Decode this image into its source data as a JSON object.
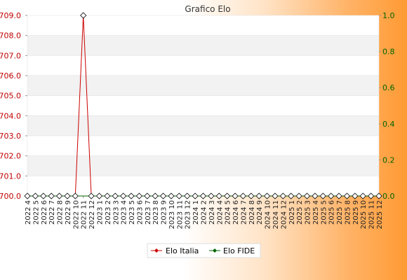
{
  "chart_data": {
    "type": "line",
    "title": "Grafico Elo",
    "categories": [
      "2022 4",
      "2022 5",
      "2022 6",
      "2022 7",
      "2022 8",
      "2022 9",
      "2022 10",
      "2022 11",
      "2022 12",
      "2023 1",
      "2023 2",
      "2023 3",
      "2023 4",
      "2023 5",
      "2023 6",
      "2023 7",
      "2023 8",
      "2023 9",
      "2023 10",
      "2023 11",
      "2023 12",
      "2024 1",
      "2024 2",
      "2024 3",
      "2024 4",
      "2024 5",
      "2024 6",
      "2024 7",
      "2024 8",
      "2024 9",
      "2024 10",
      "2024 11",
      "2024 12",
      "2025 1",
      "2025 2",
      "2025 3",
      "2025 4",
      "2025 5",
      "2025 6",
      "2025 7",
      "2025 8",
      "2025 9",
      "2025 10",
      "2025 11",
      "2025 12"
    ],
    "series": [
      {
        "name": "Elo Italia",
        "color": "#cc0000",
        "axis": "left",
        "values": [
          700,
          700,
          700,
          700,
          700,
          700,
          700,
          709,
          700,
          700,
          700,
          700,
          700,
          700,
          700,
          700,
          700,
          700,
          700,
          700,
          700,
          700,
          700,
          700,
          700,
          700,
          700,
          700,
          700,
          700,
          700,
          700,
          700,
          700,
          700,
          700,
          700,
          700,
          700,
          700,
          700,
          700,
          700,
          700,
          700
        ]
      },
      {
        "name": "Elo FIDE",
        "color": "#006400",
        "axis": "right",
        "values": [
          0,
          0,
          0,
          0,
          0,
          0,
          0,
          0,
          0,
          0,
          0,
          0,
          0,
          0,
          0,
          0,
          0,
          0,
          0,
          0,
          0,
          0,
          0,
          0,
          0,
          0,
          0,
          0,
          0,
          0,
          0,
          0,
          0,
          0,
          0,
          0,
          0,
          0,
          0,
          0,
          0,
          0,
          0,
          0,
          0
        ]
      }
    ],
    "y_left": {
      "min": 700,
      "max": 709,
      "ticks": [
        "700.0",
        "701.0",
        "702.0",
        "703.0",
        "704.0",
        "705.0",
        "706.0",
        "707.0",
        "708.0",
        "709.0"
      ],
      "color": "#cc0000"
    },
    "y_right": {
      "min": 0,
      "max": 1,
      "ticks": [
        "0.0",
        "0.2",
        "0.4",
        "0.6",
        "0.8",
        "1.0"
      ],
      "color": "#006400"
    },
    "grid": true,
    "legend": "bottom-center"
  }
}
